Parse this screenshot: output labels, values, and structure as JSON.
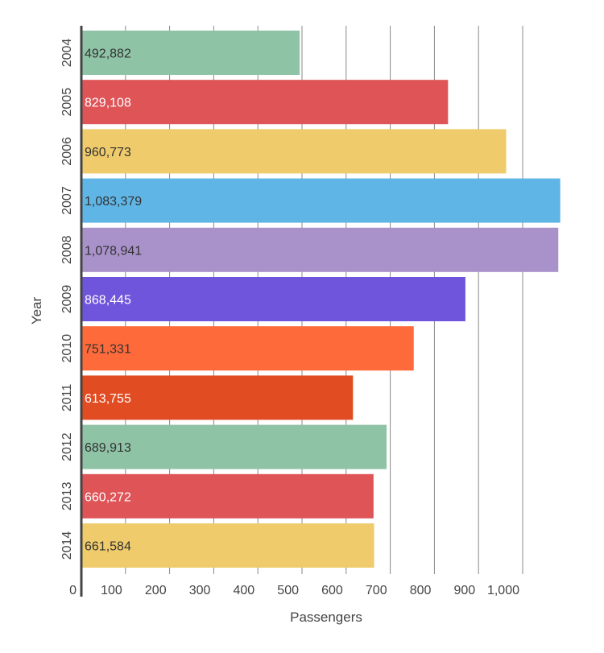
{
  "chart_data": {
    "type": "bar",
    "orientation": "horizontal",
    "xlabel": "Passengers",
    "ylabel": "Year",
    "categories": [
      "2004",
      "2005",
      "2006",
      "2007",
      "2008",
      "2009",
      "2010",
      "2011",
      "2012",
      "2013",
      "2014"
    ],
    "values": [
      492882,
      829108,
      960773,
      1083379,
      1078941,
      868445,
      751331,
      613755,
      689913,
      660272,
      661584
    ],
    "value_labels": [
      "492,882",
      "829,108",
      "960,773",
      "1,083,379",
      "1,078,941",
      "868,445",
      "751,331",
      "613,755",
      "689,913",
      "660,272",
      "661,584"
    ],
    "bar_colors": [
      "#8fc3a6",
      "#de5457",
      "#efcb6b",
      "#5fb6e6",
      "#a992ca",
      "#6f55db",
      "#ff6a3a",
      "#e24c22",
      "#8fc3a6",
      "#de5457",
      "#efcb6b"
    ],
    "label_colors": [
      "#333333",
      "#ffffff",
      "#333333",
      "#333333",
      "#333333",
      "#ffffff",
      "#333333",
      "#ffffff",
      "#333333",
      "#ffffff",
      "#333333"
    ],
    "x_ticks": [
      {
        "value": 0,
        "label": "0"
      },
      {
        "value": 100000,
        "label": "100"
      },
      {
        "value": 200000,
        "label": "200"
      },
      {
        "value": 300000,
        "label": "300"
      },
      {
        "value": 400000,
        "label": "400"
      },
      {
        "value": 500000,
        "label": "500"
      },
      {
        "value": 600000,
        "label": "600"
      },
      {
        "value": 700000,
        "label": "700"
      },
      {
        "value": 800000,
        "label": "800"
      },
      {
        "value": 900000,
        "label": "900"
      },
      {
        "value": 1000000,
        "label": "1,000"
      }
    ],
    "xlim": [
      0,
      1100000
    ],
    "grid": true,
    "axis_color": "#444444",
    "grid_color": "#888888"
  }
}
